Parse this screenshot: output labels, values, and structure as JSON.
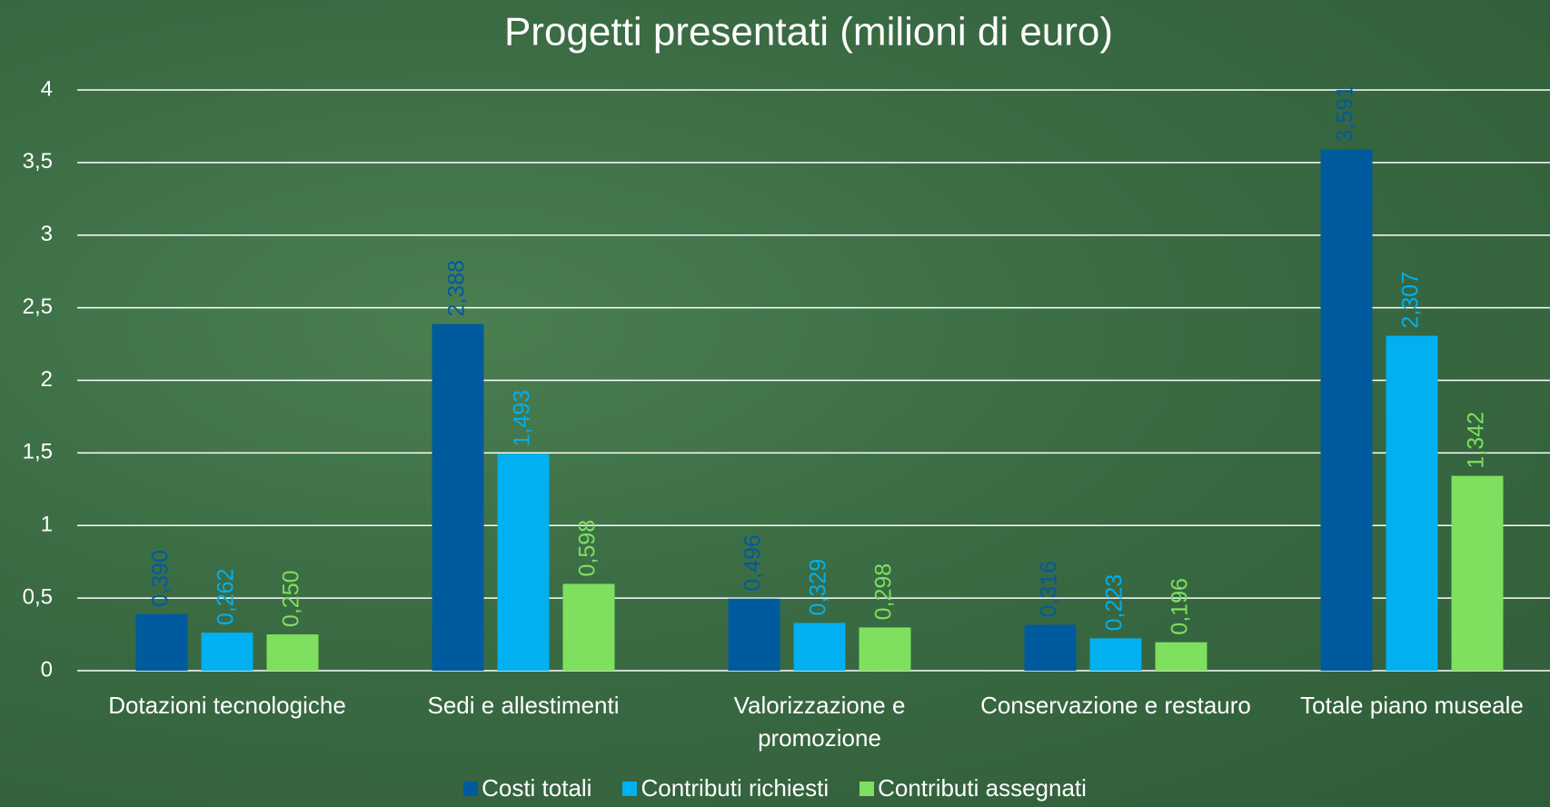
{
  "chart_data": {
    "type": "bar",
    "title": "Progetti presentati (milioni di euro)",
    "categories": [
      "Dotazioni tecnologiche",
      "Sedi e allestimenti",
      "Valorizzazione e promozione",
      "Conservazione e restauro",
      "Totale piano museale"
    ],
    "series": [
      {
        "name": "Costi totali",
        "color": "#005a9e",
        "values": [
          0.39,
          2.388,
          0.496,
          0.316,
          3.591
        ],
        "value_labels": [
          "0,390",
          "2,388",
          "0,496",
          "0,316",
          "3,591"
        ]
      },
      {
        "name": "Contributi richiesti",
        "color": "#00b0f0",
        "values": [
          0.262,
          1.493,
          0.329,
          0.223,
          2.307
        ],
        "value_labels": [
          "0,262",
          "1,493",
          "0,329",
          "0,223",
          "2,307"
        ]
      },
      {
        "name": "Contributi assegnati",
        "color": "#7ee05e",
        "values": [
          0.25,
          0.598,
          0.298,
          0.196,
          1.342
        ],
        "value_labels": [
          "0,250",
          "0,598",
          "0,298",
          "0,196",
          "1,342"
        ]
      }
    ],
    "ylim": [
      0,
      4
    ],
    "yticks": [
      0,
      {
        "value": 0.5,
        "label": "0,5"
      },
      1,
      {
        "value": 1.5,
        "label": "1,5"
      },
      2,
      {
        "value": 2.5,
        "label": "2,5"
      },
      3,
      {
        "value": 3.5,
        "label": "3,5"
      },
      4
    ],
    "grid": true,
    "legend": "bottom"
  }
}
